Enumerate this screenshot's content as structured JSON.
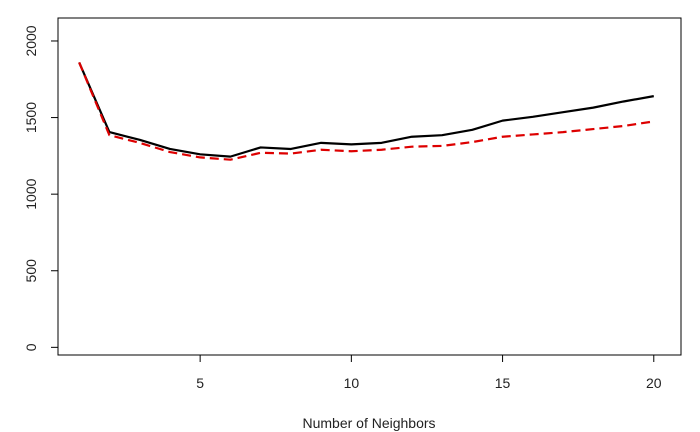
{
  "chart_data": {
    "type": "line",
    "title": "",
    "xlabel": "Number of Neighbors",
    "ylabel": "",
    "xlim": [
      0.3,
      20.9
    ],
    "ylim": [
      -50,
      2150
    ],
    "xticks": [
      5,
      10,
      15,
      20
    ],
    "yticks": [
      0,
      500,
      1000,
      1500,
      2000
    ],
    "grid": false,
    "legend": "none",
    "x": [
      1,
      2,
      3,
      4,
      5,
      6,
      7,
      8,
      9,
      10,
      11,
      12,
      13,
      14,
      15,
      16,
      17,
      18,
      19,
      20
    ],
    "series": [
      {
        "color": "#000000",
        "style": "solid",
        "values": [
          1860,
          1405,
          1355,
          1295,
          1260,
          1245,
          1305,
          1295,
          1335,
          1325,
          1335,
          1375,
          1385,
          1420,
          1480,
          1505,
          1535,
          1565,
          1605,
          1640
        ]
      },
      {
        "color": "#dd0000",
        "style": "dashed",
        "values": [
          1860,
          1385,
          1335,
          1275,
          1240,
          1225,
          1270,
          1265,
          1290,
          1280,
          1290,
          1310,
          1315,
          1340,
          1375,
          1390,
          1405,
          1425,
          1445,
          1475
        ]
      }
    ]
  }
}
